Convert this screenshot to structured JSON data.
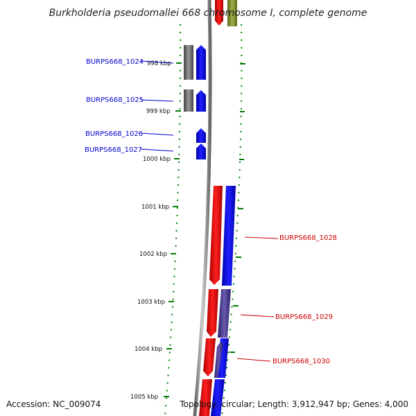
{
  "title": "Burkholderia pseudomallei 668 chromosome I, complete genome",
  "footer": {
    "accession": "Accession: NC_009074",
    "summary": "Topology: circular; Length: 3,912,947 bp; Genes: 4,000"
  },
  "ruler": {
    "labels": [
      "998 kbp",
      "999 kbp",
      "1000 kbp",
      "1001 kbp",
      "1002 kbp",
      "1003 kbp",
      "1004 kbp",
      "1005 kbp"
    ]
  },
  "genes": [
    {
      "label": "BURPS668_1024",
      "color": "#0000cc"
    },
    {
      "label": "BURPS668_1025",
      "color": "#0000cc"
    },
    {
      "label": "BURPS668_1026",
      "color": "#0000cc"
    },
    {
      "label": "BURPS668_1027",
      "color": "#0000cc"
    },
    {
      "label": "BURPS668_1028",
      "color": "#cc0000"
    },
    {
      "label": "BURPS668_1029",
      "color": "#cc0000"
    },
    {
      "label": "BURPS668_1030",
      "color": "#cc0000"
    }
  ],
  "colors": {
    "backbone": "#888888",
    "forward": "#0000ff",
    "reverse": "#ff0000",
    "gc_skew": "#00aa00",
    "grey_feature": "#666666",
    "olive_feature": "#7a8f2a",
    "purple_feature": "#4a3a99"
  }
}
